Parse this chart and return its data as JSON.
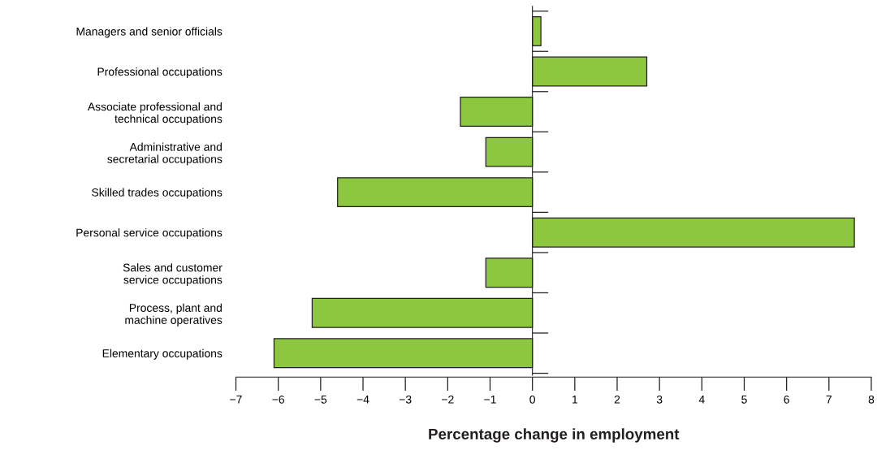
{
  "chart_data": {
    "type": "bar",
    "orientation": "horizontal",
    "xlabel": "Percentage change in employment",
    "categories": [
      "Managers and senior officials",
      "Professional occupations",
      "Associate professional and\ntechnical occupations",
      "Administrative and\nsecretarial occupations",
      "Skilled trades occupations",
      "Personal service occupations",
      "Sales and customer\nservice occupations",
      "Process, plant and\nmachine operatives",
      "Elementary occupations"
    ],
    "values": [
      0.2,
      2.7,
      -1.7,
      -1.1,
      -4.6,
      7.6,
      -1.1,
      -5.2,
      -6.1
    ],
    "color": "#8dc63f",
    "xlim": [
      -7,
      8
    ],
    "xticks": [
      {
        "value": -7,
        "label": "−7"
      },
      {
        "value": -6,
        "label": "−6"
      },
      {
        "value": -5,
        "label": "−5"
      },
      {
        "value": -4,
        "label": "−4"
      },
      {
        "value": -3,
        "label": "−3"
      },
      {
        "value": -2,
        "label": "−2"
      },
      {
        "value": -1,
        "label": "−1"
      },
      0,
      1,
      2,
      3,
      4,
      5,
      6,
      7,
      8
    ],
    "legend": false
  }
}
